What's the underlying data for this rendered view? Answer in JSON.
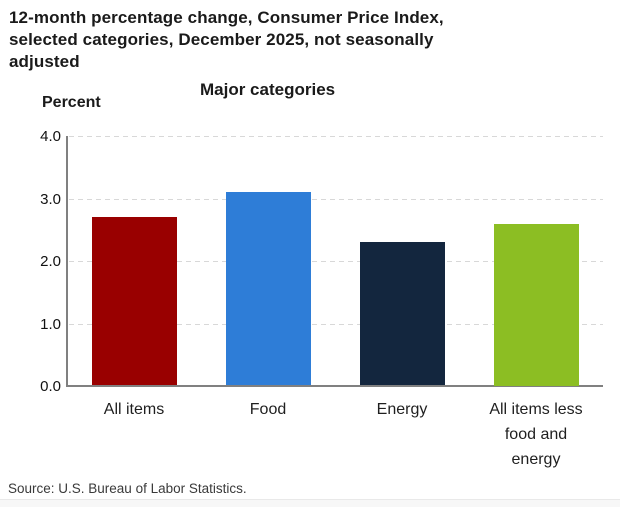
{
  "header": {
    "title_lines": [
      "12-month percentage change, Consumer Price Index,",
      "selected categories, December 2025, not seasonally",
      "adjusted"
    ]
  },
  "chart_data": {
    "type": "bar",
    "title": "12-month percentage change, Consumer Price Index, selected categories, December 2025, not seasonally adjusted",
    "subtitle": "Major categories",
    "ylabel": "Percent",
    "xlabel": "",
    "categories": [
      "All items",
      "Food",
      "Energy",
      "All items less food and energy"
    ],
    "values": [
      2.7,
      3.1,
      2.3,
      2.6
    ],
    "bar_colors": [
      "#990000",
      "#2E7DD7",
      "#13263E",
      "#8CBE23"
    ],
    "ylim": [
      0,
      4
    ],
    "yticks": [
      0.0,
      1.0,
      2.0,
      3.0,
      4.0
    ],
    "ytick_labels": [
      "0.0",
      "1.0",
      "2.0",
      "3.0",
      "4.0"
    ],
    "grid": "horizontal-dashed",
    "legend": "none"
  },
  "footer": {
    "source": "Source: U.S. Bureau of Labor Statistics."
  },
  "colors": {
    "axis": "#808080",
    "gridline": "#D8D8D8",
    "title_text": "#1A1A1A"
  }
}
